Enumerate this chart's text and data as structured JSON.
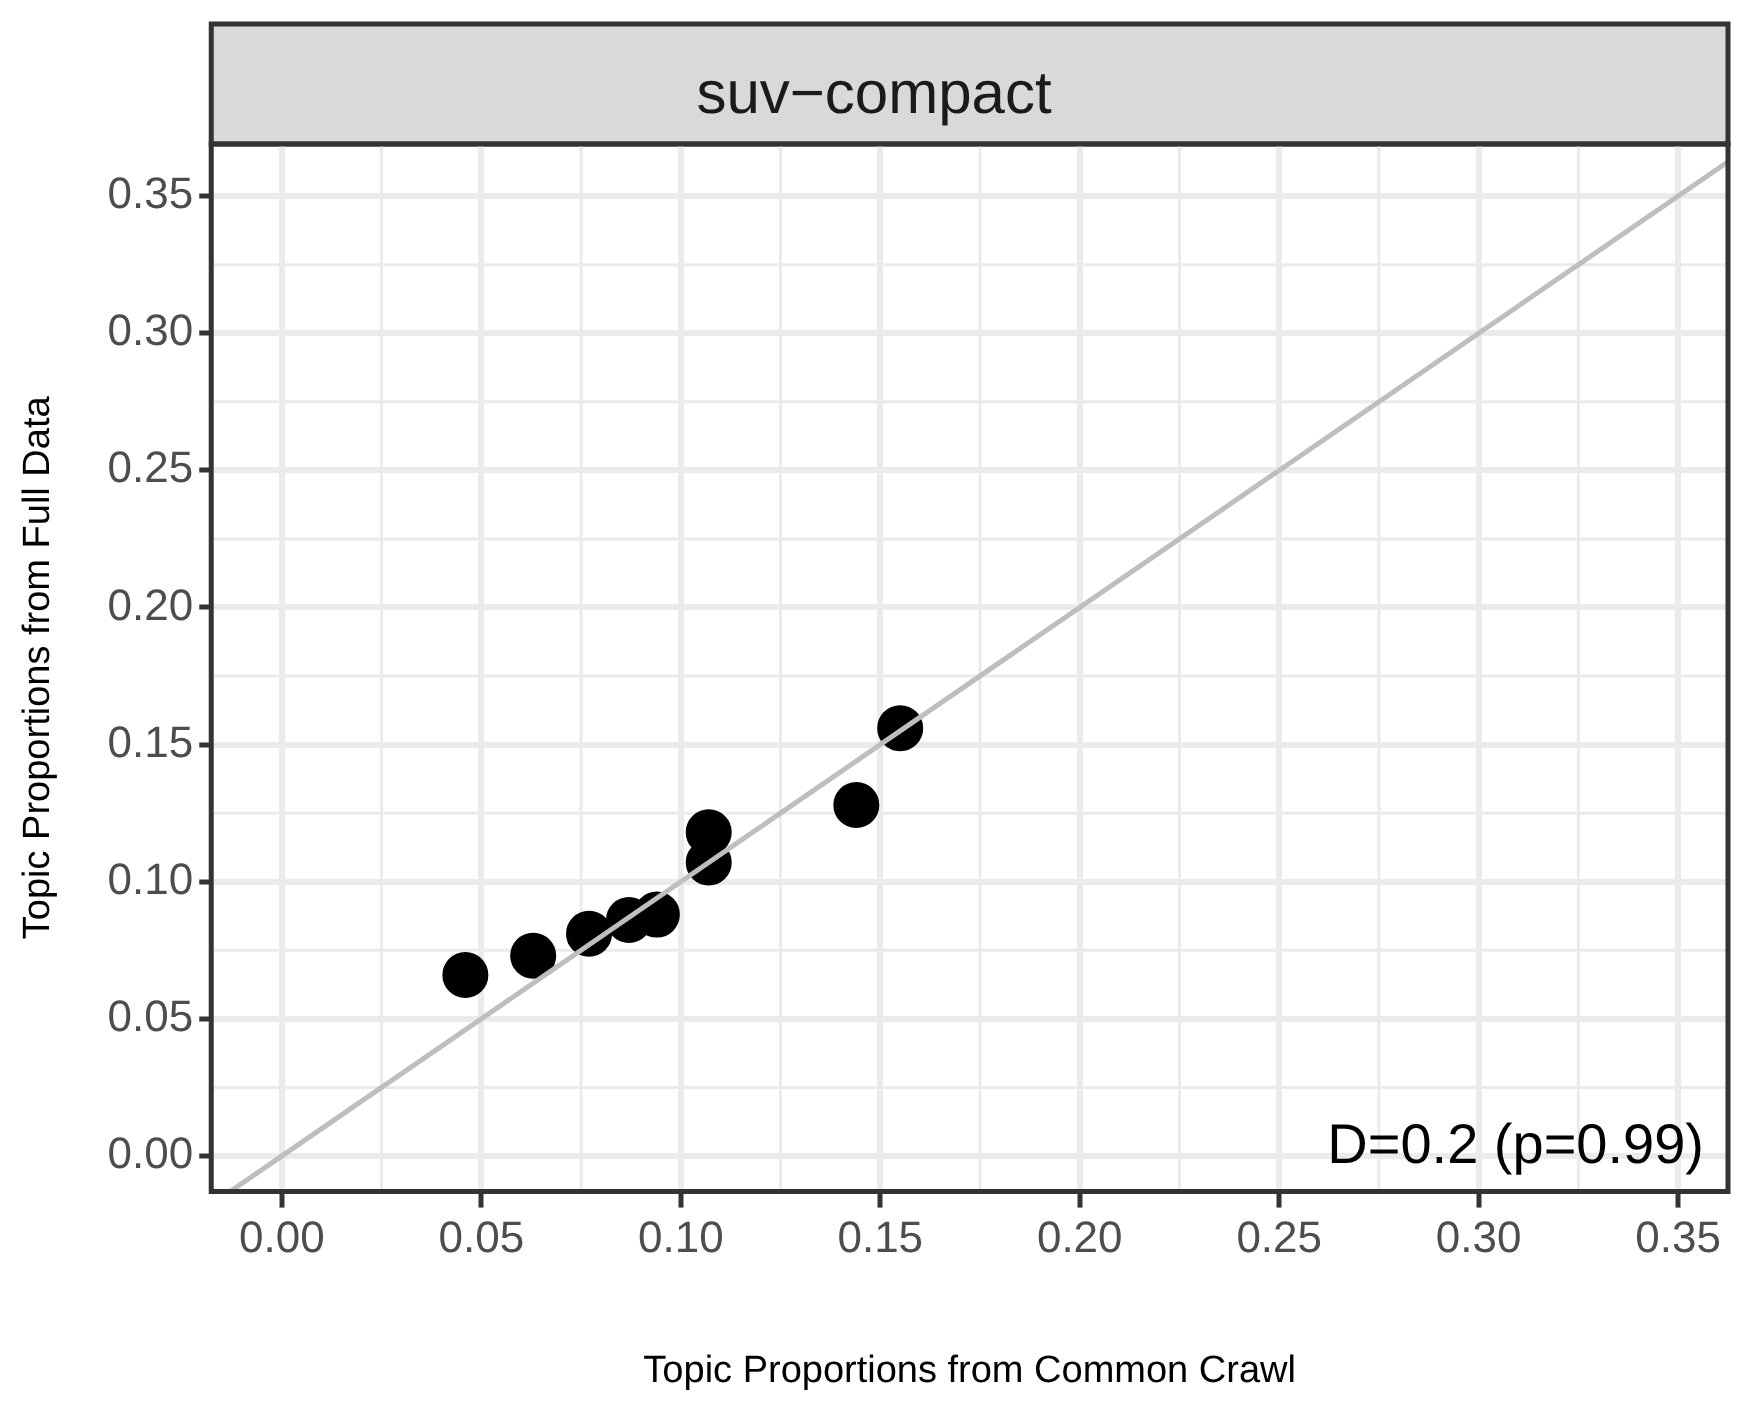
{
  "chart_data": {
    "type": "scatter",
    "title": "suv−compact",
    "xlabel": "Topic Proportions from Common Crawl",
    "ylabel": "Topic Proportions from Full Data",
    "xlim": [
      -0.0177,
      0.3625
    ],
    "ylim": [
      -0.013,
      0.369
    ],
    "xticks": [
      {
        "value": 0,
        "label": "0.00"
      },
      0.05,
      {
        "value": 0.1,
        "label": "0.10"
      },
      0.15,
      {
        "value": 0.2,
        "label": "0.20"
      },
      0.25,
      {
        "value": 0.3,
        "label": "0.30"
      },
      0.35
    ],
    "yticks": [
      {
        "value": 0,
        "label": "0.00"
      },
      0.05,
      {
        "value": 0.1,
        "label": "0.10"
      },
      0.15,
      {
        "value": 0.2,
        "label": "0.20"
      },
      0.25,
      {
        "value": 0.3,
        "label": "0.30"
      },
      0.35
    ],
    "grid": true,
    "legend": false,
    "series": [
      {
        "marker": "circle",
        "color": "#000000",
        "x": [
          0.046,
          0.063,
          0.077,
          0.087,
          0.094,
          0.107,
          0.107,
          0.144,
          0.155
        ],
        "values": [
          0.066,
          0.073,
          0.081,
          0.086,
          0.088,
          0.118,
          0.107,
          0.128,
          0.156
        ]
      },
      {
        "type": "line",
        "marker": "none",
        "color": "#bebebe",
        "x": [
          -0.013,
          0.3625
        ],
        "values": [
          -0.013,
          0.3625
        ]
      }
    ],
    "annotations": [
      "D=0.2 (p=0.99)"
    ]
  }
}
